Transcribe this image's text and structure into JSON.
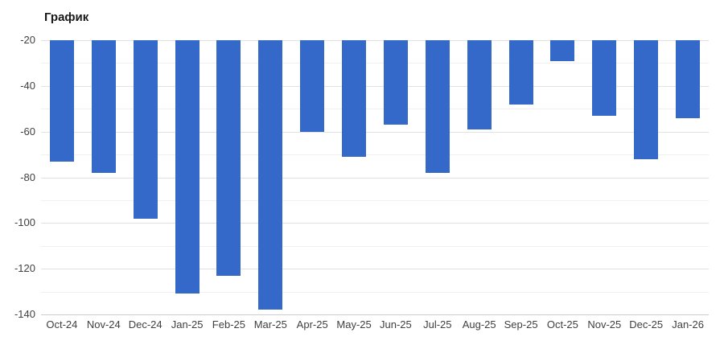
{
  "chart_data": {
    "type": "bar",
    "title": "График",
    "categories": [
      "Oct-24",
      "Nov-24",
      "Dec-24",
      "Jan-25",
      "Feb-25",
      "Mar-25",
      "Apr-25",
      "May-25",
      "Jun-25",
      "Jul-25",
      "Aug-25",
      "Sep-25",
      "Oct-25",
      "Nov-25",
      "Dec-25",
      "Jan-26"
    ],
    "values": [
      -73,
      -78,
      -98,
      -131,
      -123,
      -138,
      -60,
      -71,
      -57,
      -78,
      -59,
      -48,
      -29,
      -53,
      -72,
      -54
    ],
    "xlabel": "",
    "ylabel": "",
    "ylim": [
      -140,
      -20
    ],
    "yticks_major": [
      -20,
      -40,
      -60,
      -80,
      -100,
      -120,
      -140
    ],
    "ytick_minor_step": 10,
    "grid": true,
    "legend_position": "none",
    "bar_color": "#3468c9",
    "colors": {
      "title_text": "#1a1a1a",
      "tick_text": "#404040",
      "gridline_major": "#e2e2e2",
      "gridline_minor": "#f0f0f0",
      "baseline": "#cccccc",
      "background": "#ffffff"
    }
  }
}
